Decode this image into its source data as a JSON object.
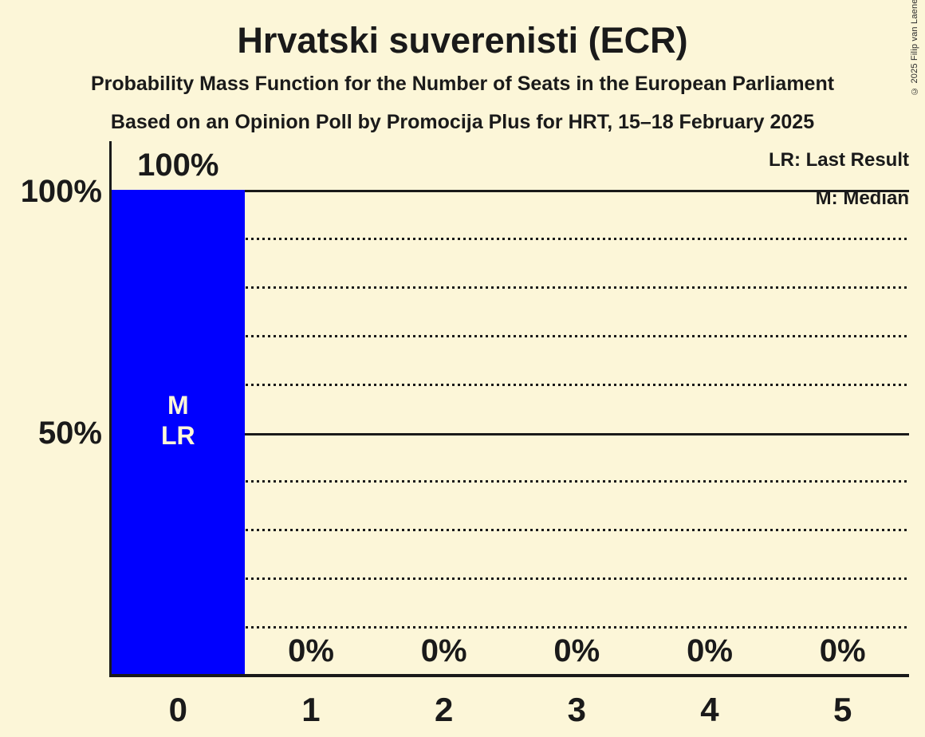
{
  "title": "Hrvatski suverenisti (ECR)",
  "subtitles": [
    "Probability Mass Function for the Number of Seats in the European Parliament",
    "Based on an Opinion Poll by Promocija Plus for HRT, 15–18 February 2025"
  ],
  "legend": {
    "last_result": "LR: Last Result",
    "median": "M: Median"
  },
  "copyright": "© 2025 Filip van Laenen",
  "y_axis": {
    "ticks": [
      {
        "value": 100,
        "label": "100%"
      },
      {
        "value": 50,
        "label": "50%"
      }
    ]
  },
  "chart_data": {
    "type": "bar",
    "title": "Hrvatski suverenisti (ECR)",
    "xlabel": "",
    "ylabel": "",
    "categories": [
      "0",
      "1",
      "2",
      "3",
      "4",
      "5"
    ],
    "values": [
      100,
      0,
      0,
      0,
      0,
      0
    ],
    "value_labels": [
      "100%",
      "0%",
      "0%",
      "0%",
      "0%",
      "0%"
    ],
    "annotations": [
      {
        "category_index": 0,
        "lines": [
          "M",
          "LR"
        ]
      }
    ],
    "ylim": [
      0,
      100
    ],
    "gridlines_solid": [
      100,
      50
    ],
    "gridlines_dotted": [
      90,
      80,
      70,
      60,
      40,
      30,
      20,
      10
    ],
    "legend_position": "top-right",
    "grid": true,
    "colors": {
      "bar": "#0000ff",
      "background": "#fcf6d8",
      "text": "#1a1a1a",
      "bar_label_text": "#fcf6d8"
    }
  }
}
